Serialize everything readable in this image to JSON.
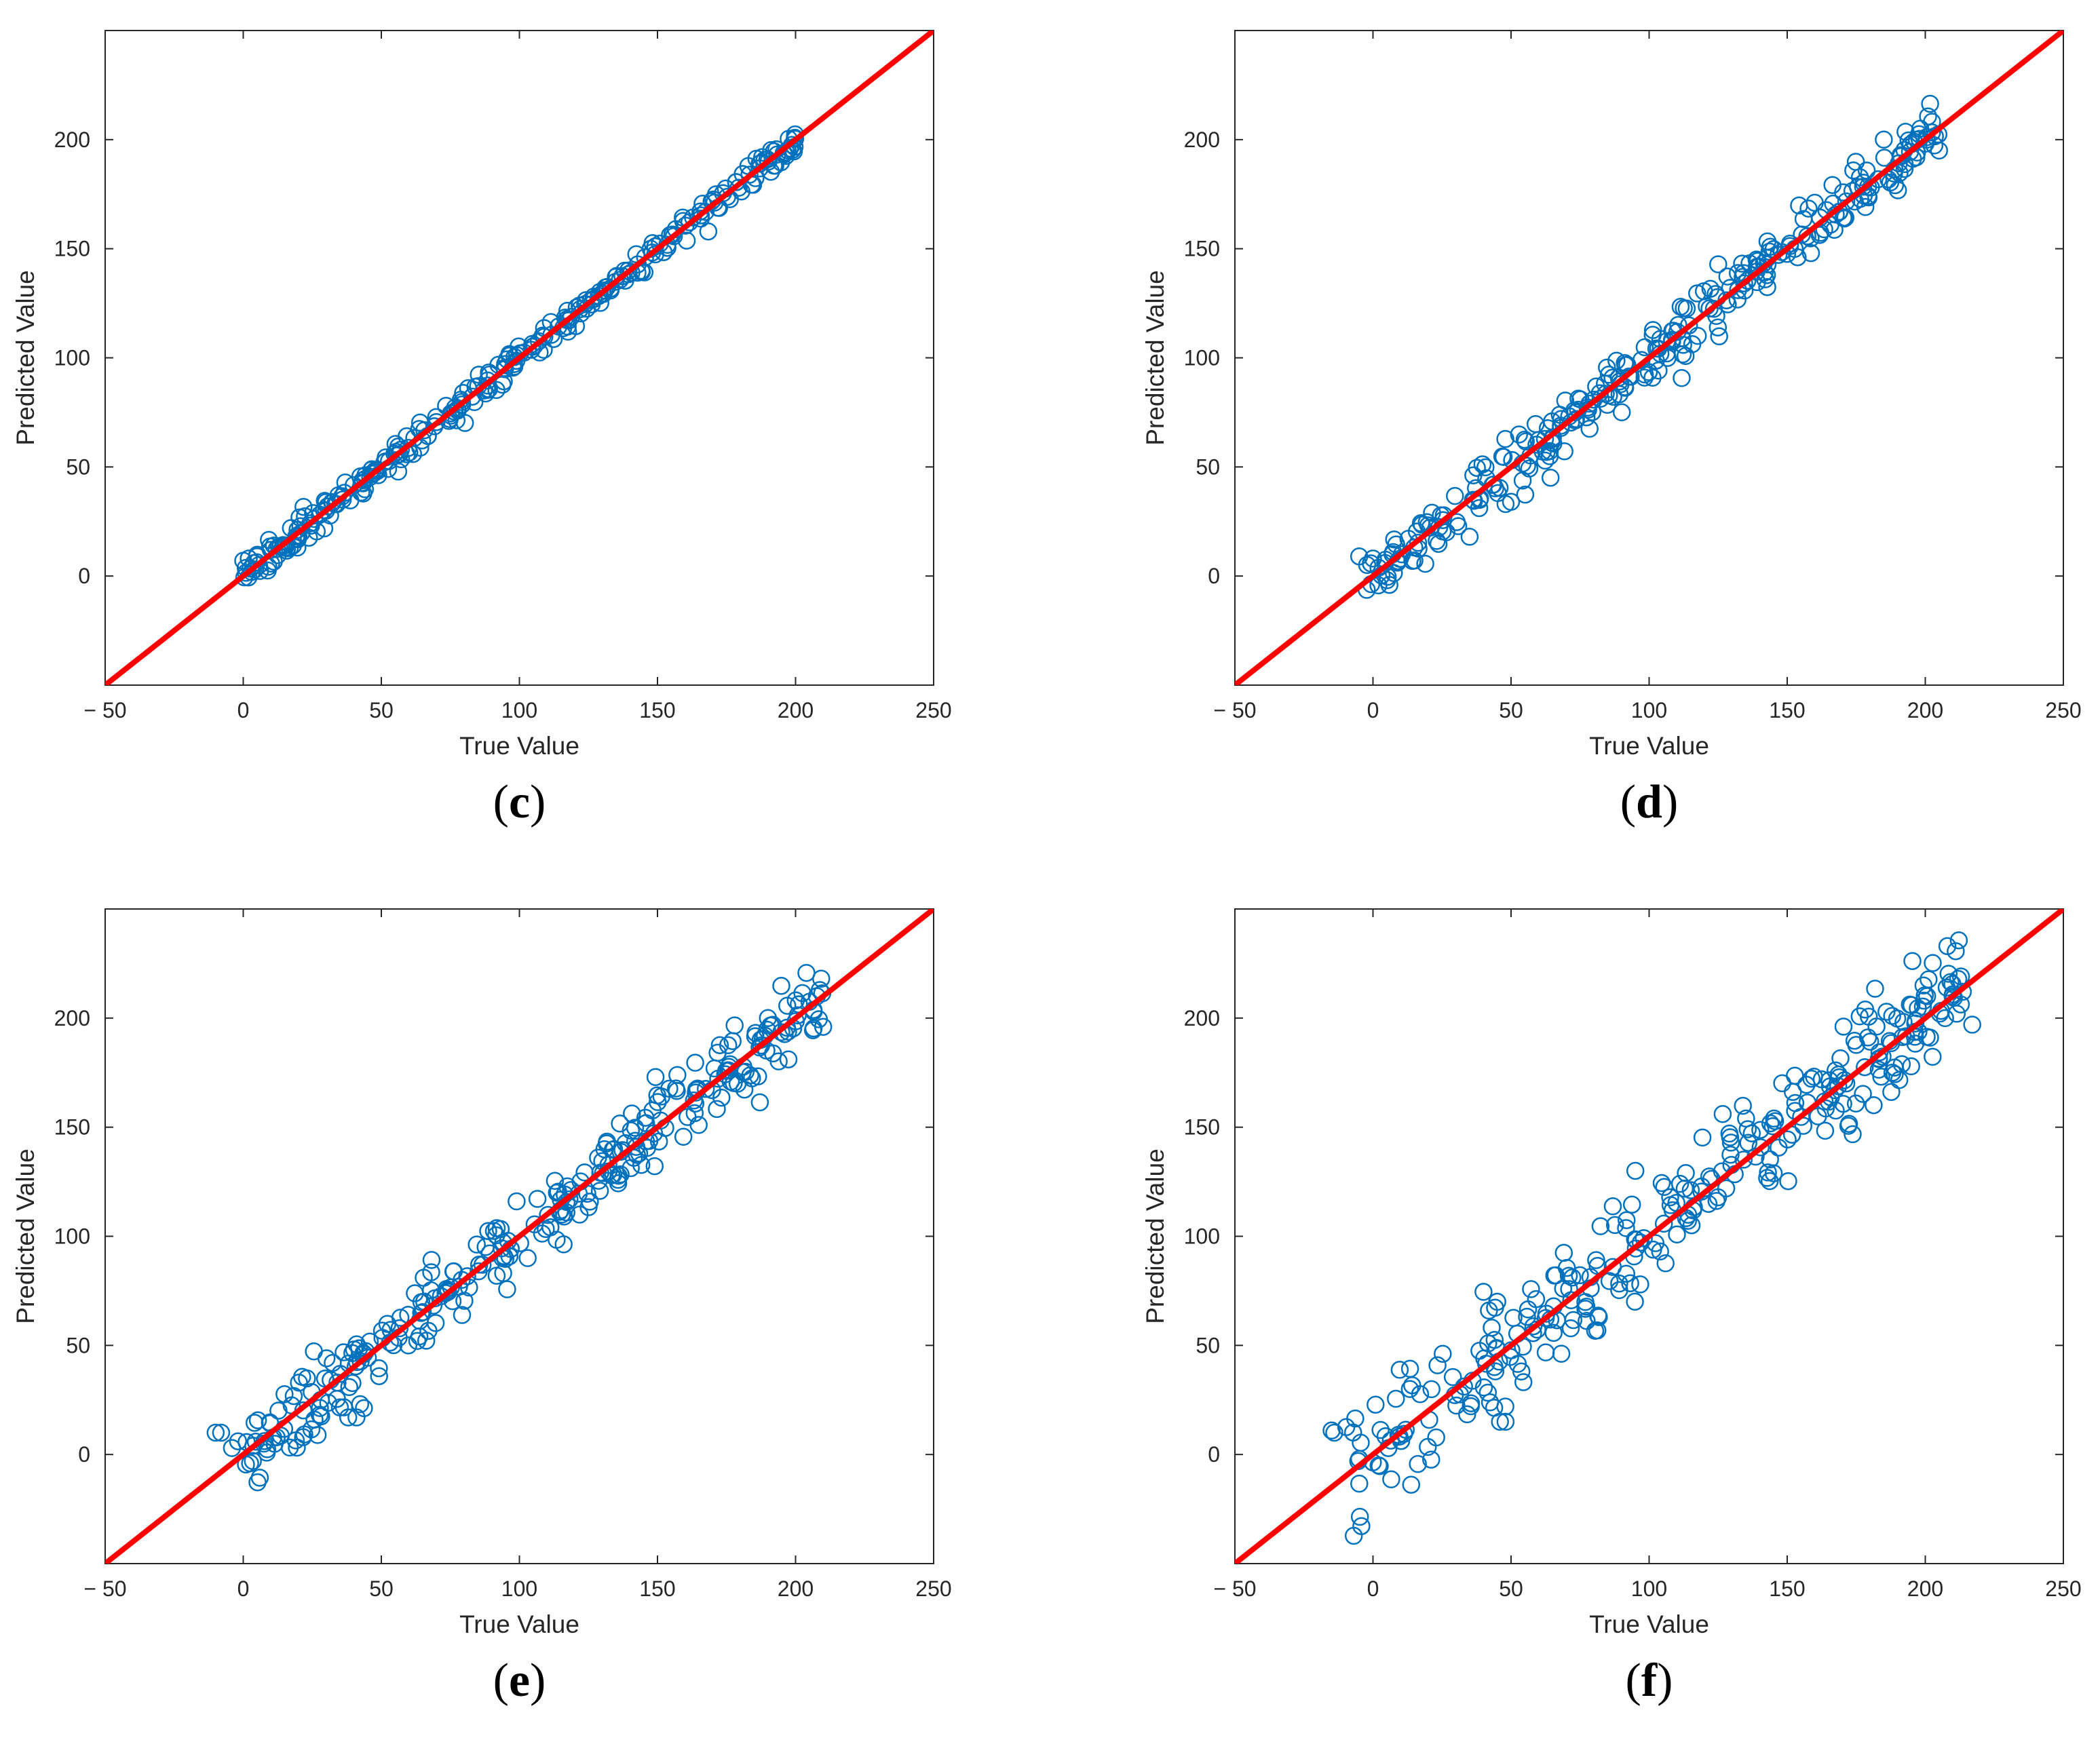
{
  "colors": {
    "points": "#0072BD",
    "identity_line": "#FF0000",
    "axes": "#262626"
  },
  "chart_data": [
    {
      "type": "scatter",
      "panel_label": "c",
      "xlabel": "True Value",
      "ylabel": "Predicted Value",
      "xlim": [
        -50,
        250
      ],
      "ylim": [
        -50,
        250
      ],
      "xticks": [
        -50,
        0,
        50,
        100,
        150,
        200,
        250
      ],
      "xtick_labels": [
        "− 50",
        "0",
        "50",
        "100",
        "150",
        "200",
        "250"
      ],
      "yticks": [
        0,
        50,
        100,
        150,
        200
      ],
      "ytick_labels": [
        "0",
        "50",
        "100",
        "150",
        "200"
      ],
      "grid": false,
      "reference_line": {
        "x": [
          -50,
          250
        ],
        "y": [
          -50,
          250
        ]
      },
      "x_range": [
        0,
        200
      ],
      "noise": 3,
      "outliers": [
        [
          0,
          7
        ],
        [
          2,
          8
        ],
        [
          5,
          9
        ],
        [
          10,
          12
        ],
        [
          15,
          14
        ],
        [
          20,
          18
        ]
      ],
      "n": 300
    },
    {
      "type": "scatter",
      "panel_label": "d",
      "xlabel": "True Value",
      "ylabel": "Predicted Value",
      "xlim": [
        -50,
        250
      ],
      "ylim": [
        -50,
        250
      ],
      "xticks": [
        -50,
        0,
        50,
        100,
        150,
        200,
        250
      ],
      "xtick_labels": [
        "− 50",
        "0",
        "50",
        "100",
        "150",
        "200",
        "250"
      ],
      "yticks": [
        0,
        50,
        100,
        150,
        200
      ],
      "ytick_labels": [
        "0",
        "50",
        "100",
        "150",
        "200"
      ],
      "grid": false,
      "reference_line": {
        "x": [
          -50,
          250
        ],
        "y": [
          -50,
          250
        ]
      },
      "x_range": [
        -3,
        205
      ],
      "noise": 7,
      "outliers": [
        [
          -5,
          9
        ],
        [
          0,
          8
        ],
        [
          35,
          18
        ],
        [
          48,
          33
        ],
        [
          50,
          34
        ],
        [
          205,
          195
        ],
        [
          185,
          200
        ]
      ],
      "n": 300
    },
    {
      "type": "scatter",
      "panel_label": "e",
      "xlabel": "True Value",
      "ylabel": "Predicted Value",
      "xlim": [
        -50,
        250
      ],
      "ylim": [
        -50,
        250
      ],
      "xticks": [
        -50,
        0,
        50,
        100,
        150,
        200,
        250
      ],
      "xtick_labels": [
        "− 50",
        "0",
        "50",
        "100",
        "150",
        "200",
        "250"
      ],
      "yticks": [
        0,
        50,
        100,
        150,
        200
      ],
      "ytick_labels": [
        "0",
        "50",
        "100",
        "150",
        "200"
      ],
      "grid": false,
      "reference_line": {
        "x": [
          -50,
          250
        ],
        "y": [
          -50,
          250
        ]
      },
      "x_range": [
        -5,
        210
      ],
      "noise": 9,
      "outliers": [
        [
          -10,
          10
        ],
        [
          -8,
          10
        ],
        [
          38,
          17
        ],
        [
          41,
          17
        ],
        [
          99,
          116
        ],
        [
          210,
          196
        ],
        [
          190,
          200
        ]
      ],
      "n": 300
    },
    {
      "type": "scatter",
      "panel_label": "f",
      "xlabel": "True Value",
      "ylabel": "Predicted Value",
      "xlim": [
        -50,
        250
      ],
      "ylim": [
        -50,
        250
      ],
      "xticks": [
        -50,
        0,
        50,
        100,
        150,
        200,
        250
      ],
      "xtick_labels": [
        "− 50",
        "0",
        "50",
        "100",
        "150",
        "200",
        "250"
      ],
      "yticks": [
        0,
        50,
        100,
        150,
        200
      ],
      "ytick_labels": [
        "0",
        "50",
        "100",
        "150",
        "200"
      ],
      "grid": false,
      "reference_line": {
        "x": [
          -50,
          250
        ],
        "y": [
          -50,
          250
        ]
      },
      "x_range": [
        -10,
        215
      ],
      "noise": 13,
      "outliers": [
        [
          -15,
          11
        ],
        [
          -14,
          10
        ],
        [
          42,
          66
        ],
        [
          45,
          70
        ],
        [
          46,
          15
        ],
        [
          48,
          15
        ],
        [
          95,
          130
        ],
        [
          217,
          197
        ],
        [
          188,
          201
        ]
      ],
      "n": 300
    }
  ]
}
